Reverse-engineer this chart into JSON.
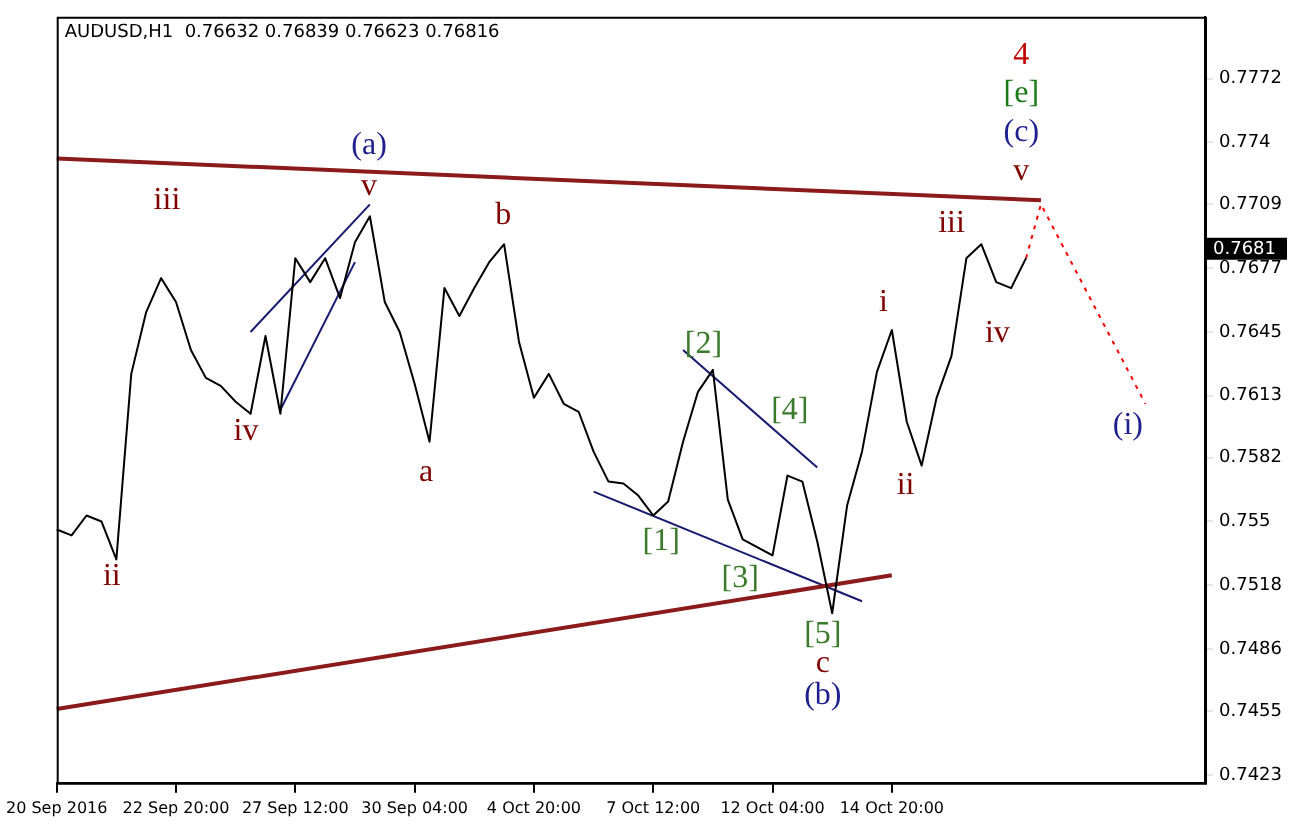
{
  "chart_data": {
    "type": "line",
    "title": "AUDUSD,H1  0.76632 0.76839 0.76623 0.76816",
    "categories": [
      "20 Sep 2016",
      null,
      null,
      null,
      null,
      null,
      null,
      null,
      "22 Sep 20:00",
      null,
      null,
      null,
      null,
      null,
      null,
      null,
      "27 Sep 12:00",
      null,
      null,
      null,
      null,
      null,
      null,
      null,
      "30 Sep 04:00",
      null,
      null,
      null,
      null,
      null,
      null,
      null,
      "4 Oct 20:00",
      null,
      null,
      null,
      null,
      null,
      null,
      null,
      "7 Oct 12:00",
      null,
      null,
      null,
      null,
      null,
      null,
      null,
      "12 Oct 04:00",
      null,
      null,
      null,
      null,
      null,
      null,
      null,
      "14 Oct 20:00",
      null,
      null,
      null,
      null,
      null,
      null,
      null,
      null,
      null,
      null,
      null,
      null,
      null,
      null,
      null,
      null,
      null,
      null,
      null,
      null,
      null
    ],
    "ylim": [
      0.7419,
      0.7803
    ],
    "yticks": [
      0.7772,
      0.774,
      0.7709,
      0.7677,
      0.7645,
      0.7613,
      0.7582,
      0.755,
      0.7518,
      0.7486,
      0.7455,
      0.7423
    ],
    "grid": false,
    "legend": false,
    "series": [
      {
        "color": "#000000",
        "values": [
          0.7546,
          0.7543,
          0.7553,
          0.755,
          0.7531,
          0.7624,
          0.7655,
          0.7672,
          0.766,
          0.7636,
          0.7622,
          0.7618,
          0.761,
          0.7604,
          0.7643,
          0.7604,
          0.7682,
          0.767,
          0.7682,
          0.7662,
          0.769,
          0.7703,
          0.766,
          0.7645,
          0.7619,
          0.759,
          0.7667,
          0.7653,
          0.7667,
          0.768,
          0.7689,
          0.764,
          0.7612,
          0.7624,
          0.7609,
          0.7605,
          0.7585,
          0.757,
          0.7569,
          0.7563,
          0.7553,
          0.756,
          0.759,
          0.7615,
          0.7626,
          0.7561,
          0.7541,
          0.7537,
          0.7533,
          0.7573,
          0.757,
          0.754,
          0.7504,
          0.7558,
          0.7585,
          0.7625,
          0.7646,
          0.76,
          0.7578,
          0.7612,
          0.7633,
          0.7682,
          0.7689,
          0.767,
          0.7667,
          0.7682,
          null,
          null,
          null,
          null,
          null,
          null,
          null,
          null,
          null,
          null,
          null,
          null
        ]
      },
      {
        "color": "#8b1a1a",
        "values": [
          0.7732,
          null,
          null,
          null,
          null,
          null,
          null,
          null,
          null,
          null,
          null,
          null,
          null,
          null,
          null,
          null,
          null,
          null,
          null,
          null,
          null,
          null,
          null,
          null,
          null,
          null,
          null,
          null,
          null,
          null,
          null,
          null,
          null,
          null,
          null,
          null,
          null,
          null,
          null,
          null,
          null,
          null,
          null,
          null,
          null,
          null,
          null,
          null,
          null,
          null,
          null,
          null,
          null,
          null,
          null,
          null,
          null,
          null,
          null,
          null,
          null,
          null,
          null,
          null,
          null,
          null,
          0.7711,
          null,
          null,
          null,
          null,
          null,
          null,
          null,
          null,
          null,
          null,
          null
        ]
      },
      {
        "color": "#8b1a1a",
        "values": [
          0.7456,
          null,
          null,
          null,
          null,
          null,
          null,
          null,
          null,
          null,
          null,
          null,
          null,
          null,
          null,
          null,
          null,
          null,
          null,
          null,
          null,
          null,
          null,
          null,
          null,
          null,
          null,
          null,
          null,
          null,
          null,
          null,
          null,
          null,
          null,
          null,
          null,
          null,
          null,
          null,
          null,
          null,
          null,
          null,
          null,
          null,
          null,
          null,
          null,
          null,
          null,
          null,
          null,
          null,
          null,
          null,
          0.7523,
          null,
          null,
          null,
          null,
          null,
          null,
          null,
          null,
          null,
          null,
          null,
          null,
          null,
          null,
          null,
          null,
          null,
          null,
          null,
          null,
          null
        ]
      },
      {
        "color": "#191970",
        "values": [
          null,
          null,
          null,
          null,
          null,
          null,
          null,
          null,
          null,
          null,
          null,
          null,
          null,
          0.7645,
          null,
          null,
          null,
          null,
          null,
          null,
          null,
          0.7709,
          null,
          null,
          null,
          null,
          null,
          null,
          null,
          null,
          null,
          null,
          null,
          null,
          null,
          null,
          null,
          null,
          null,
          null,
          null,
          null,
          null,
          null,
          null,
          null,
          null,
          null,
          null,
          null,
          null,
          null,
          null,
          null,
          null,
          null,
          null,
          null,
          null,
          null,
          null,
          null,
          null,
          null,
          null,
          null,
          null,
          null,
          null,
          null,
          null,
          null,
          null,
          null,
          null,
          null,
          null,
          null
        ]
      },
      {
        "color": "#191970",
        "values": [
          null,
          null,
          null,
          null,
          null,
          null,
          null,
          null,
          null,
          null,
          null,
          null,
          null,
          null,
          null,
          0.7606,
          null,
          null,
          null,
          null,
          0.768,
          null,
          null,
          null,
          null,
          null,
          null,
          null,
          null,
          null,
          null,
          null,
          null,
          null,
          null,
          null,
          null,
          null,
          null,
          null,
          null,
          null,
          null,
          null,
          null,
          null,
          null,
          null,
          null,
          null,
          null,
          null,
          null,
          null,
          null,
          null,
          null,
          null,
          null,
          null,
          null,
          null,
          null,
          null,
          null,
          null,
          null,
          null,
          null,
          null,
          null,
          null,
          null,
          null,
          null,
          null,
          null,
          null
        ]
      },
      {
        "color": "#191970",
        "values": [
          null,
          null,
          null,
          null,
          null,
          null,
          null,
          null,
          null,
          null,
          null,
          null,
          null,
          null,
          null,
          null,
          null,
          null,
          null,
          null,
          null,
          null,
          null,
          null,
          null,
          null,
          null,
          null,
          null,
          null,
          null,
          null,
          null,
          null,
          null,
          null,
          0.7565,
          null,
          null,
          null,
          null,
          null,
          null,
          null,
          null,
          null,
          null,
          null,
          null,
          null,
          null,
          null,
          null,
          null,
          0.751,
          null,
          null,
          null,
          null,
          null,
          null,
          null,
          null,
          null,
          null,
          null,
          null,
          null,
          null,
          null,
          null,
          null,
          null,
          null,
          null,
          null,
          null,
          null
        ]
      },
      {
        "color": "#191970",
        "values": [
          null,
          null,
          null,
          null,
          null,
          null,
          null,
          null,
          null,
          null,
          null,
          null,
          null,
          null,
          null,
          null,
          null,
          null,
          null,
          null,
          null,
          null,
          null,
          null,
          null,
          null,
          null,
          null,
          null,
          null,
          null,
          null,
          null,
          null,
          null,
          null,
          null,
          null,
          null,
          null,
          null,
          null,
          0.7636,
          null,
          null,
          null,
          null,
          null,
          null,
          null,
          null,
          0.7577,
          null,
          null,
          null,
          null,
          null,
          null,
          null,
          null,
          null,
          null,
          null,
          null,
          null,
          null,
          null,
          null,
          null,
          null,
          null,
          null,
          null,
          null,
          null,
          null,
          null,
          null
        ]
      },
      {
        "color": "#ff0000",
        "line_style": "dotted",
        "values": [
          null,
          null,
          null,
          null,
          null,
          null,
          null,
          null,
          null,
          null,
          null,
          null,
          null,
          null,
          null,
          null,
          null,
          null,
          null,
          null,
          null,
          null,
          null,
          null,
          null,
          null,
          null,
          null,
          null,
          null,
          null,
          null,
          null,
          null,
          null,
          null,
          null,
          null,
          null,
          null,
          null,
          null,
          null,
          null,
          null,
          null,
          null,
          null,
          null,
          null,
          null,
          null,
          null,
          null,
          null,
          null,
          null,
          null,
          null,
          null,
          null,
          null,
          null,
          null,
          null,
          0.7682,
          0.7709,
          null,
          null,
          null,
          null,
          null,
          null,
          0.7609,
          null,
          null,
          null,
          null
        ]
      }
    ],
    "annotations": [
      "(a)",
      "v",
      "iii",
      "iv",
      "ii",
      "a",
      "b",
      "[1]",
      "[2]",
      "[3]",
      "[4]",
      "[5]",
      "c",
      "(b)",
      "i",
      "ii",
      "iii",
      "iv",
      "v",
      "(c)",
      "[e]",
      "4",
      "(i)",
      "0.7681"
    ]
  }
}
